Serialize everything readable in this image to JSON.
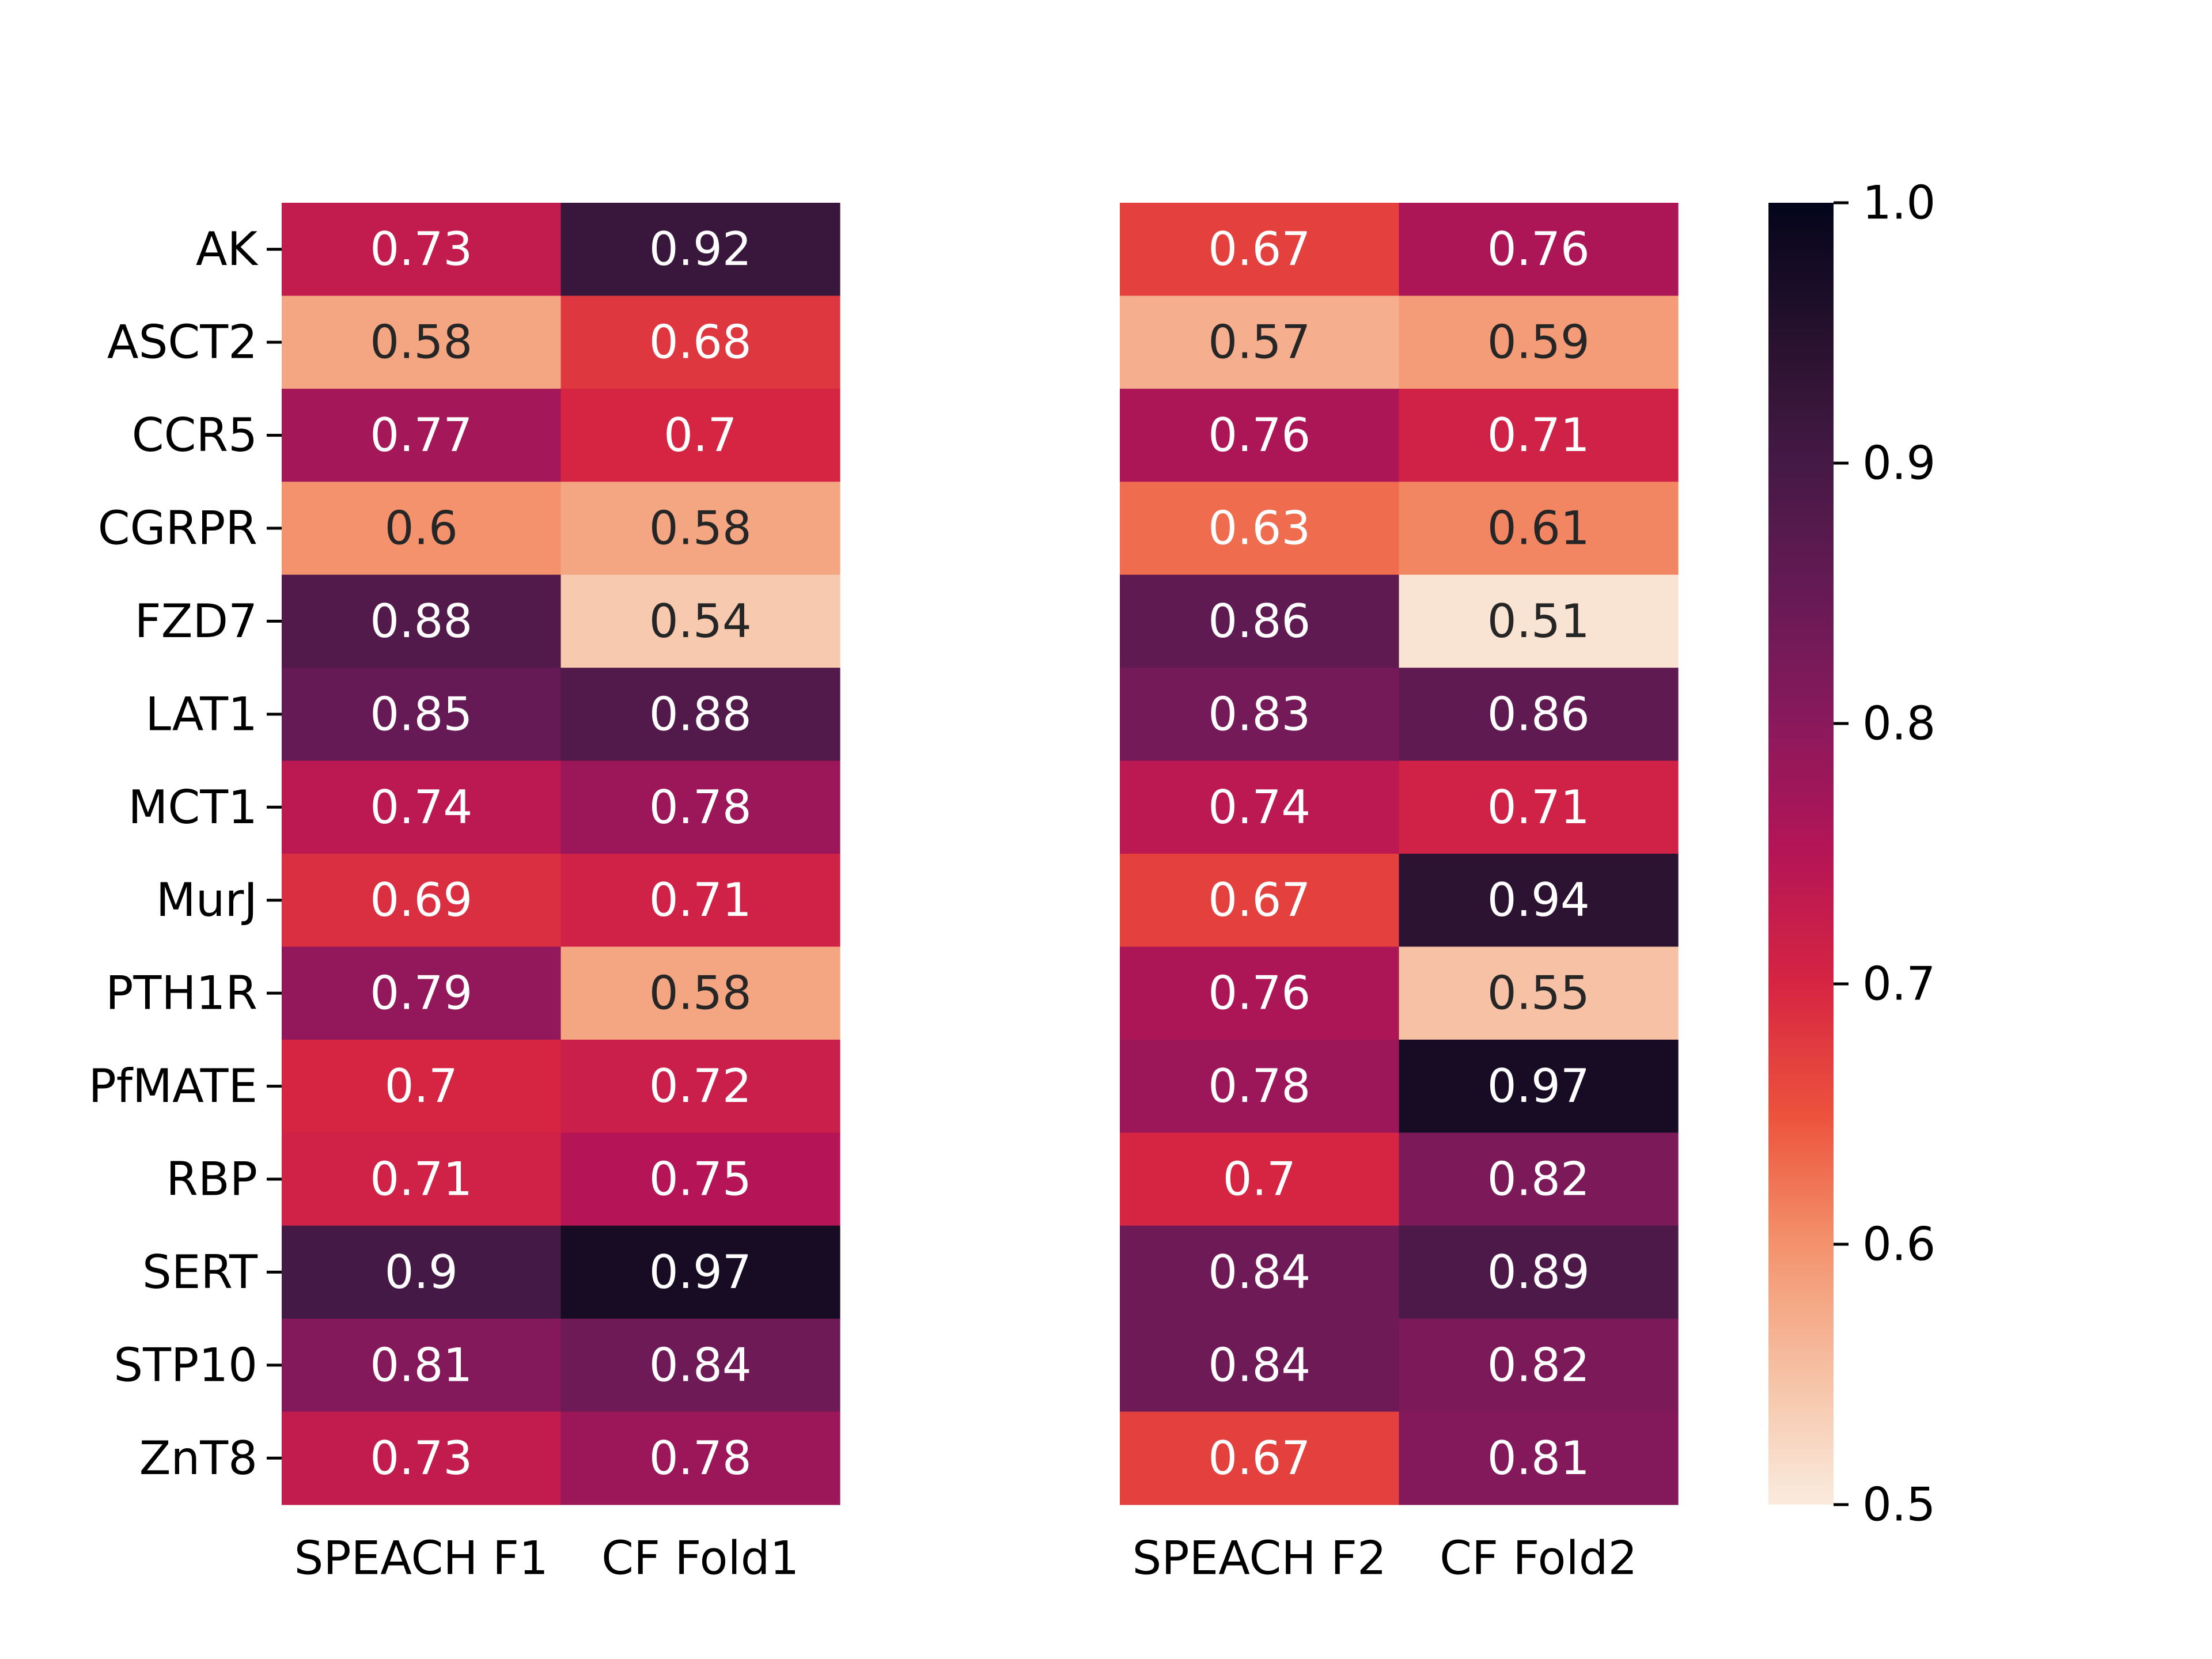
{
  "chart_data": [
    {
      "type": "heatmap",
      "title": "",
      "xlabel": "",
      "ylabel": "",
      "rows": [
        "AK",
        "ASCT2",
        "CCR5",
        "CGRPR",
        "FZD7",
        "LAT1",
        "MCT1",
        "MurJ",
        "PTH1R",
        "PfMATE",
        "RBP",
        "SERT",
        "STP10",
        "ZnT8"
      ],
      "columns": [
        "SPEACH F1",
        "CF Fold1"
      ],
      "values": [
        [
          0.73,
          0.92
        ],
        [
          0.58,
          0.68
        ],
        [
          0.77,
          0.7
        ],
        [
          0.6,
          0.58
        ],
        [
          0.88,
          0.54
        ],
        [
          0.85,
          0.88
        ],
        [
          0.74,
          0.78
        ],
        [
          0.69,
          0.71
        ],
        [
          0.79,
          0.58
        ],
        [
          0.7,
          0.72
        ],
        [
          0.71,
          0.75
        ],
        [
          0.9,
          0.97
        ],
        [
          0.81,
          0.84
        ],
        [
          0.73,
          0.78
        ]
      ],
      "value_labels": [
        [
          "0.73",
          "0.92"
        ],
        [
          "0.58",
          "0.68"
        ],
        [
          "0.77",
          "0.7"
        ],
        [
          "0.6",
          "0.58"
        ],
        [
          "0.88",
          "0.54"
        ],
        [
          "0.85",
          "0.88"
        ],
        [
          "0.74",
          "0.78"
        ],
        [
          "0.69",
          "0.71"
        ],
        [
          "0.79",
          "0.58"
        ],
        [
          "0.7",
          "0.72"
        ],
        [
          "0.71",
          "0.75"
        ],
        [
          "0.9",
          "0.97"
        ],
        [
          "0.81",
          "0.84"
        ],
        [
          "0.73",
          "0.78"
        ]
      ]
    },
    {
      "type": "heatmap",
      "title": "",
      "xlabel": "",
      "ylabel": "",
      "rows": [
        "AK",
        "ASCT2",
        "CCR5",
        "CGRPR",
        "FZD7",
        "LAT1",
        "MCT1",
        "MurJ",
        "PTH1R",
        "PfMATE",
        "RBP",
        "SERT",
        "STP10",
        "ZnT8"
      ],
      "columns": [
        "SPEACH F2",
        "CF Fold2"
      ],
      "values": [
        [
          0.67,
          0.76
        ],
        [
          0.57,
          0.59
        ],
        [
          0.76,
          0.71
        ],
        [
          0.63,
          0.61
        ],
        [
          0.86,
          0.51
        ],
        [
          0.83,
          0.86
        ],
        [
          0.74,
          0.71
        ],
        [
          0.67,
          0.94
        ],
        [
          0.76,
          0.55
        ],
        [
          0.78,
          0.97
        ],
        [
          0.7,
          0.82
        ],
        [
          0.84,
          0.89
        ],
        [
          0.84,
          0.82
        ],
        [
          0.67,
          0.81
        ]
      ],
      "value_labels": [
        [
          "0.67",
          "0.76"
        ],
        [
          "0.57",
          "0.59"
        ],
        [
          "0.76",
          "0.71"
        ],
        [
          "0.63",
          "0.61"
        ],
        [
          "0.86",
          "0.51"
        ],
        [
          "0.83",
          "0.86"
        ],
        [
          "0.74",
          "0.71"
        ],
        [
          "0.67",
          "0.94"
        ],
        [
          "0.76",
          "0.55"
        ],
        [
          "0.78",
          "0.97"
        ],
        [
          "0.7",
          "0.82"
        ],
        [
          "0.84",
          "0.89"
        ],
        [
          "0.84",
          "0.82"
        ],
        [
          "0.67",
          "0.81"
        ]
      ]
    }
  ],
  "colorbar": {
    "colormap": "rocket_r",
    "range": [
      0.5,
      1.0
    ],
    "ticks": [
      0.5,
      0.6,
      0.7,
      0.8,
      0.9,
      1.0
    ],
    "tick_labels": [
      "0.5",
      "0.6",
      "0.7",
      "0.8",
      "0.9",
      "1.0"
    ]
  }
}
